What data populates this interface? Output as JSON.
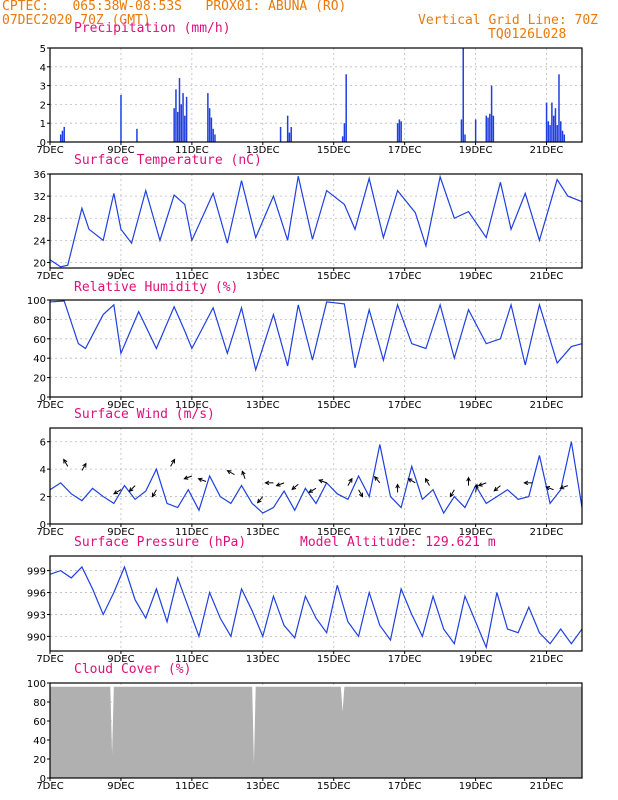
{
  "header": {
    "line1": "CPTEC:   065:38W-08:53S   PROX01: ABUNA (RO)",
    "line2_left": "07DEC2020 70Z (GMT)",
    "line2_right": "Vertical Grid Line: 70Z",
    "line3_right": "TQ0126L028"
  },
  "colors": {
    "line": "#1f3fe0",
    "title": "#e0107a",
    "header": "#e8790a",
    "cloud": "#b0b0b0"
  },
  "x_ticks": [
    "7DEC",
    "9DEC",
    "11DEC",
    "13DEC",
    "15DEC",
    "17DEC",
    "19DEC",
    "21DEC"
  ],
  "chart_data": [
    {
      "id": "precip",
      "type": "bar",
      "title": "Precipitation (mm/h)",
      "ylim": [
        0,
        5
      ],
      "yticks": [
        0,
        1,
        2,
        3,
        4,
        5
      ],
      "x_unit": "days since 7DEC",
      "x": [
        0.3,
        0.35,
        0.4,
        2.0,
        2.45,
        3.5,
        3.55,
        3.6,
        3.65,
        3.7,
        3.75,
        3.8,
        3.85,
        4.45,
        4.5,
        4.55,
        4.6,
        4.65,
        6.5,
        6.7,
        6.75,
        6.8,
        8.25,
        8.3,
        8.35,
        9.8,
        9.85,
        9.9,
        11.6,
        11.65,
        11.7,
        12.0,
        12.3,
        12.35,
        12.4,
        12.45,
        12.5,
        14.0,
        14.05,
        14.1,
        14.15,
        14.2,
        14.25,
        14.3,
        14.35,
        14.4,
        14.45,
        14.5
      ],
      "values": [
        0.4,
        0.6,
        0.8,
        2.5,
        0.7,
        1.8,
        2.8,
        1.6,
        3.4,
        2.0,
        2.6,
        1.4,
        2.4,
        2.6,
        1.8,
        1.3,
        0.7,
        0.4,
        0.8,
        1.4,
        0.5,
        0.8,
        0.3,
        1.0,
        3.6,
        1.0,
        1.2,
        1.1,
        1.2,
        5.0,
        0.4,
        1.2,
        1.4,
        1.3,
        1.5,
        3.0,
        1.4,
        2.1,
        1.1,
        0.9,
        2.1,
        1.4,
        1.8,
        0.9,
        3.6,
        1.1,
        0.6,
        0.4
      ]
    },
    {
      "id": "temp",
      "type": "line",
      "title": "Surface Temperature (nC)",
      "ylim": [
        19,
        36
      ],
      "yticks": [
        20,
        24,
        28,
        32,
        36
      ],
      "x": [
        0,
        0.3,
        0.5,
        0.9,
        1.1,
        1.5,
        1.8,
        2.0,
        2.3,
        2.7,
        3.1,
        3.5,
        3.8,
        4.0,
        4.6,
        5.0,
        5.4,
        5.8,
        6.3,
        6.7,
        7.0,
        7.4,
        7.8,
        8.3,
        8.6,
        9.0,
        9.4,
        9.8,
        10.3,
        10.6,
        11.0,
        11.4,
        11.8,
        12.3,
        12.7,
        13.0,
        13.4,
        13.8,
        14.3,
        14.6,
        15.0
      ],
      "values": [
        20.5,
        19.2,
        19.5,
        29.8,
        26.0,
        24.0,
        32.5,
        26.0,
        23.5,
        33.0,
        24.0,
        32.2,
        30.5,
        24.0,
        32.5,
        23.5,
        34.8,
        24.5,
        32.0,
        24.0,
        35.6,
        24.2,
        33.0,
        30.5,
        26.0,
        35.2,
        24.5,
        33.0,
        29.0,
        23.0,
        35.5,
        28.0,
        29.2,
        24.5,
        34.5,
        26.0,
        32.5,
        24.0,
        35.0,
        32.0,
        31.0
      ]
    },
    {
      "id": "rh",
      "type": "line",
      "title": "Relative Humidity (%)",
      "ylim": [
        0,
        100
      ],
      "yticks": [
        0,
        20,
        40,
        60,
        80,
        100
      ],
      "x": [
        0,
        0.4,
        0.8,
        1.0,
        1.5,
        1.8,
        2.0,
        2.5,
        3.0,
        3.5,
        3.8,
        4.0,
        4.6,
        5.0,
        5.4,
        5.8,
        6.3,
        6.7,
        7.0,
        7.4,
        7.8,
        8.3,
        8.6,
        9.0,
        9.4,
        9.8,
        10.2,
        10.6,
        11.0,
        11.4,
        11.8,
        12.3,
        12.7,
        13.0,
        13.4,
        13.8,
        14.3,
        14.7,
        15.0
      ],
      "values": [
        98,
        99,
        55,
        50,
        85,
        95,
        45,
        88,
        50,
        93,
        68,
        50,
        92,
        45,
        92,
        28,
        85,
        32,
        95,
        38,
        98,
        96,
        30,
        90,
        38,
        95,
        55,
        50,
        95,
        40,
        90,
        55,
        60,
        95,
        33,
        95,
        35,
        52,
        55
      ]
    },
    {
      "id": "wind",
      "type": "line",
      "title": "Surface Wind (m/s)",
      "ylim": [
        0,
        7
      ],
      "yticks": [
        0,
        2,
        4,
        6
      ],
      "x": [
        0,
        0.3,
        0.6,
        0.9,
        1.2,
        1.5,
        1.8,
        2.1,
        2.4,
        2.7,
        3.0,
        3.3,
        3.6,
        3.9,
        4.2,
        4.5,
        4.8,
        5.1,
        5.4,
        5.7,
        6.0,
        6.3,
        6.6,
        6.9,
        7.2,
        7.5,
        7.8,
        8.1,
        8.4,
        8.7,
        9.0,
        9.3,
        9.6,
        9.9,
        10.2,
        10.5,
        10.8,
        11.1,
        11.4,
        11.7,
        12.0,
        12.3,
        12.6,
        12.9,
        13.2,
        13.5,
        13.8,
        14.1,
        14.4,
        14.7,
        15.0
      ],
      "values": [
        2.5,
        3.0,
        2.2,
        1.7,
        2.6,
        2.0,
        1.5,
        2.8,
        1.8,
        2.4,
        4.0,
        1.5,
        1.2,
        2.5,
        1.0,
        3.5,
        2.0,
        1.5,
        2.8,
        1.5,
        0.8,
        1.2,
        2.4,
        1.0,
        2.6,
        1.5,
        3.0,
        2.2,
        1.8,
        3.5,
        2.0,
        5.8,
        2.0,
        1.2,
        4.2,
        1.8,
        2.5,
        0.8,
        2.0,
        1.2,
        2.8,
        1.5,
        2.0,
        2.5,
        1.8,
        2.0,
        5.0,
        1.5,
        2.5,
        6.0,
        1.2
      ],
      "arrows_x": [
        0.5,
        0.9,
        2.0,
        2.4,
        3.0,
        3.4,
        4.0,
        4.4,
        5.2,
        5.5,
        6.0,
        6.3,
        6.6,
        7.0,
        7.5,
        7.8,
        8.4,
        8.7,
        9.3,
        9.8,
        10.3,
        10.7,
        11.4,
        11.8,
        12.0,
        12.3,
        12.7,
        13.6,
        14.2,
        14.6
      ],
      "arrows_y": [
        4.2,
        3.9,
        2.5,
        2.8,
        2.5,
        4.2,
        3.5,
        3.1,
        3.6,
        3.3,
        2.0,
        3.0,
        3.0,
        2.9,
        2.6,
        3.0,
        2.8,
        2.5,
        3.0,
        2.3,
        3.0,
        2.8,
        2.5,
        2.8,
        2.3,
        3.0,
        2.8,
        3.0,
        2.5,
        2.8
      ],
      "arrows_deg": [
        120,
        60,
        210,
        225,
        240,
        60,
        200,
        160,
        150,
        110,
        230,
        180,
        200,
        220,
        210,
        160,
        60,
        300,
        130,
        90,
        150,
        120,
        240,
        90,
        80,
        200,
        220,
        180,
        160,
        200
      ]
    },
    {
      "id": "press",
      "type": "line",
      "title": "Surface Pressure (hPa)",
      "subtitle": "Model Altitude: 129.621  m",
      "ylim": [
        988,
        1001
      ],
      "yticks": [
        990,
        993,
        996,
        999
      ],
      "x": [
        0,
        0.3,
        0.6,
        0.9,
        1.2,
        1.5,
        1.8,
        2.1,
        2.4,
        2.7,
        3.0,
        3.3,
        3.6,
        3.9,
        4.2,
        4.5,
        4.8,
        5.1,
        5.4,
        5.7,
        6.0,
        6.3,
        6.6,
        6.9,
        7.2,
        7.5,
        7.8,
        8.1,
        8.4,
        8.7,
        9.0,
        9.3,
        9.6,
        9.9,
        10.2,
        10.5,
        10.8,
        11.1,
        11.4,
        11.7,
        12.0,
        12.3,
        12.6,
        12.9,
        13.2,
        13.5,
        13.8,
        14.1,
        14.4,
        14.7,
        15.0
      ],
      "values": [
        998.5,
        999.0,
        998.0,
        999.5,
        996.5,
        993.0,
        996.0,
        999.5,
        995.0,
        992.5,
        996.5,
        992.0,
        998.0,
        994.0,
        990.0,
        996.0,
        992.5,
        990.0,
        996.5,
        993.5,
        990.0,
        995.5,
        991.5,
        989.8,
        995.5,
        992.5,
        990.5,
        997.0,
        992.0,
        990.0,
        996.0,
        991.5,
        989.5,
        996.5,
        993.0,
        990.0,
        995.5,
        991.0,
        989.0,
        995.5,
        992.0,
        988.5,
        996.0,
        991.0,
        990.5,
        994.0,
        990.5,
        989.0,
        991.0,
        989.0,
        991.0
      ]
    },
    {
      "id": "cloud",
      "type": "area",
      "title": "Cloud Cover (%)",
      "ylim": [
        0,
        100
      ],
      "yticks": [
        0,
        20,
        40,
        60,
        80,
        100
      ],
      "x": [
        0,
        1.7,
        1.75,
        1.8,
        5.7,
        5.75,
        5.8,
        8.2,
        8.25,
        8.3,
        15.0
      ],
      "values": [
        96,
        96,
        25,
        96,
        96,
        15,
        96,
        96,
        70,
        96,
        96
      ]
    }
  ]
}
